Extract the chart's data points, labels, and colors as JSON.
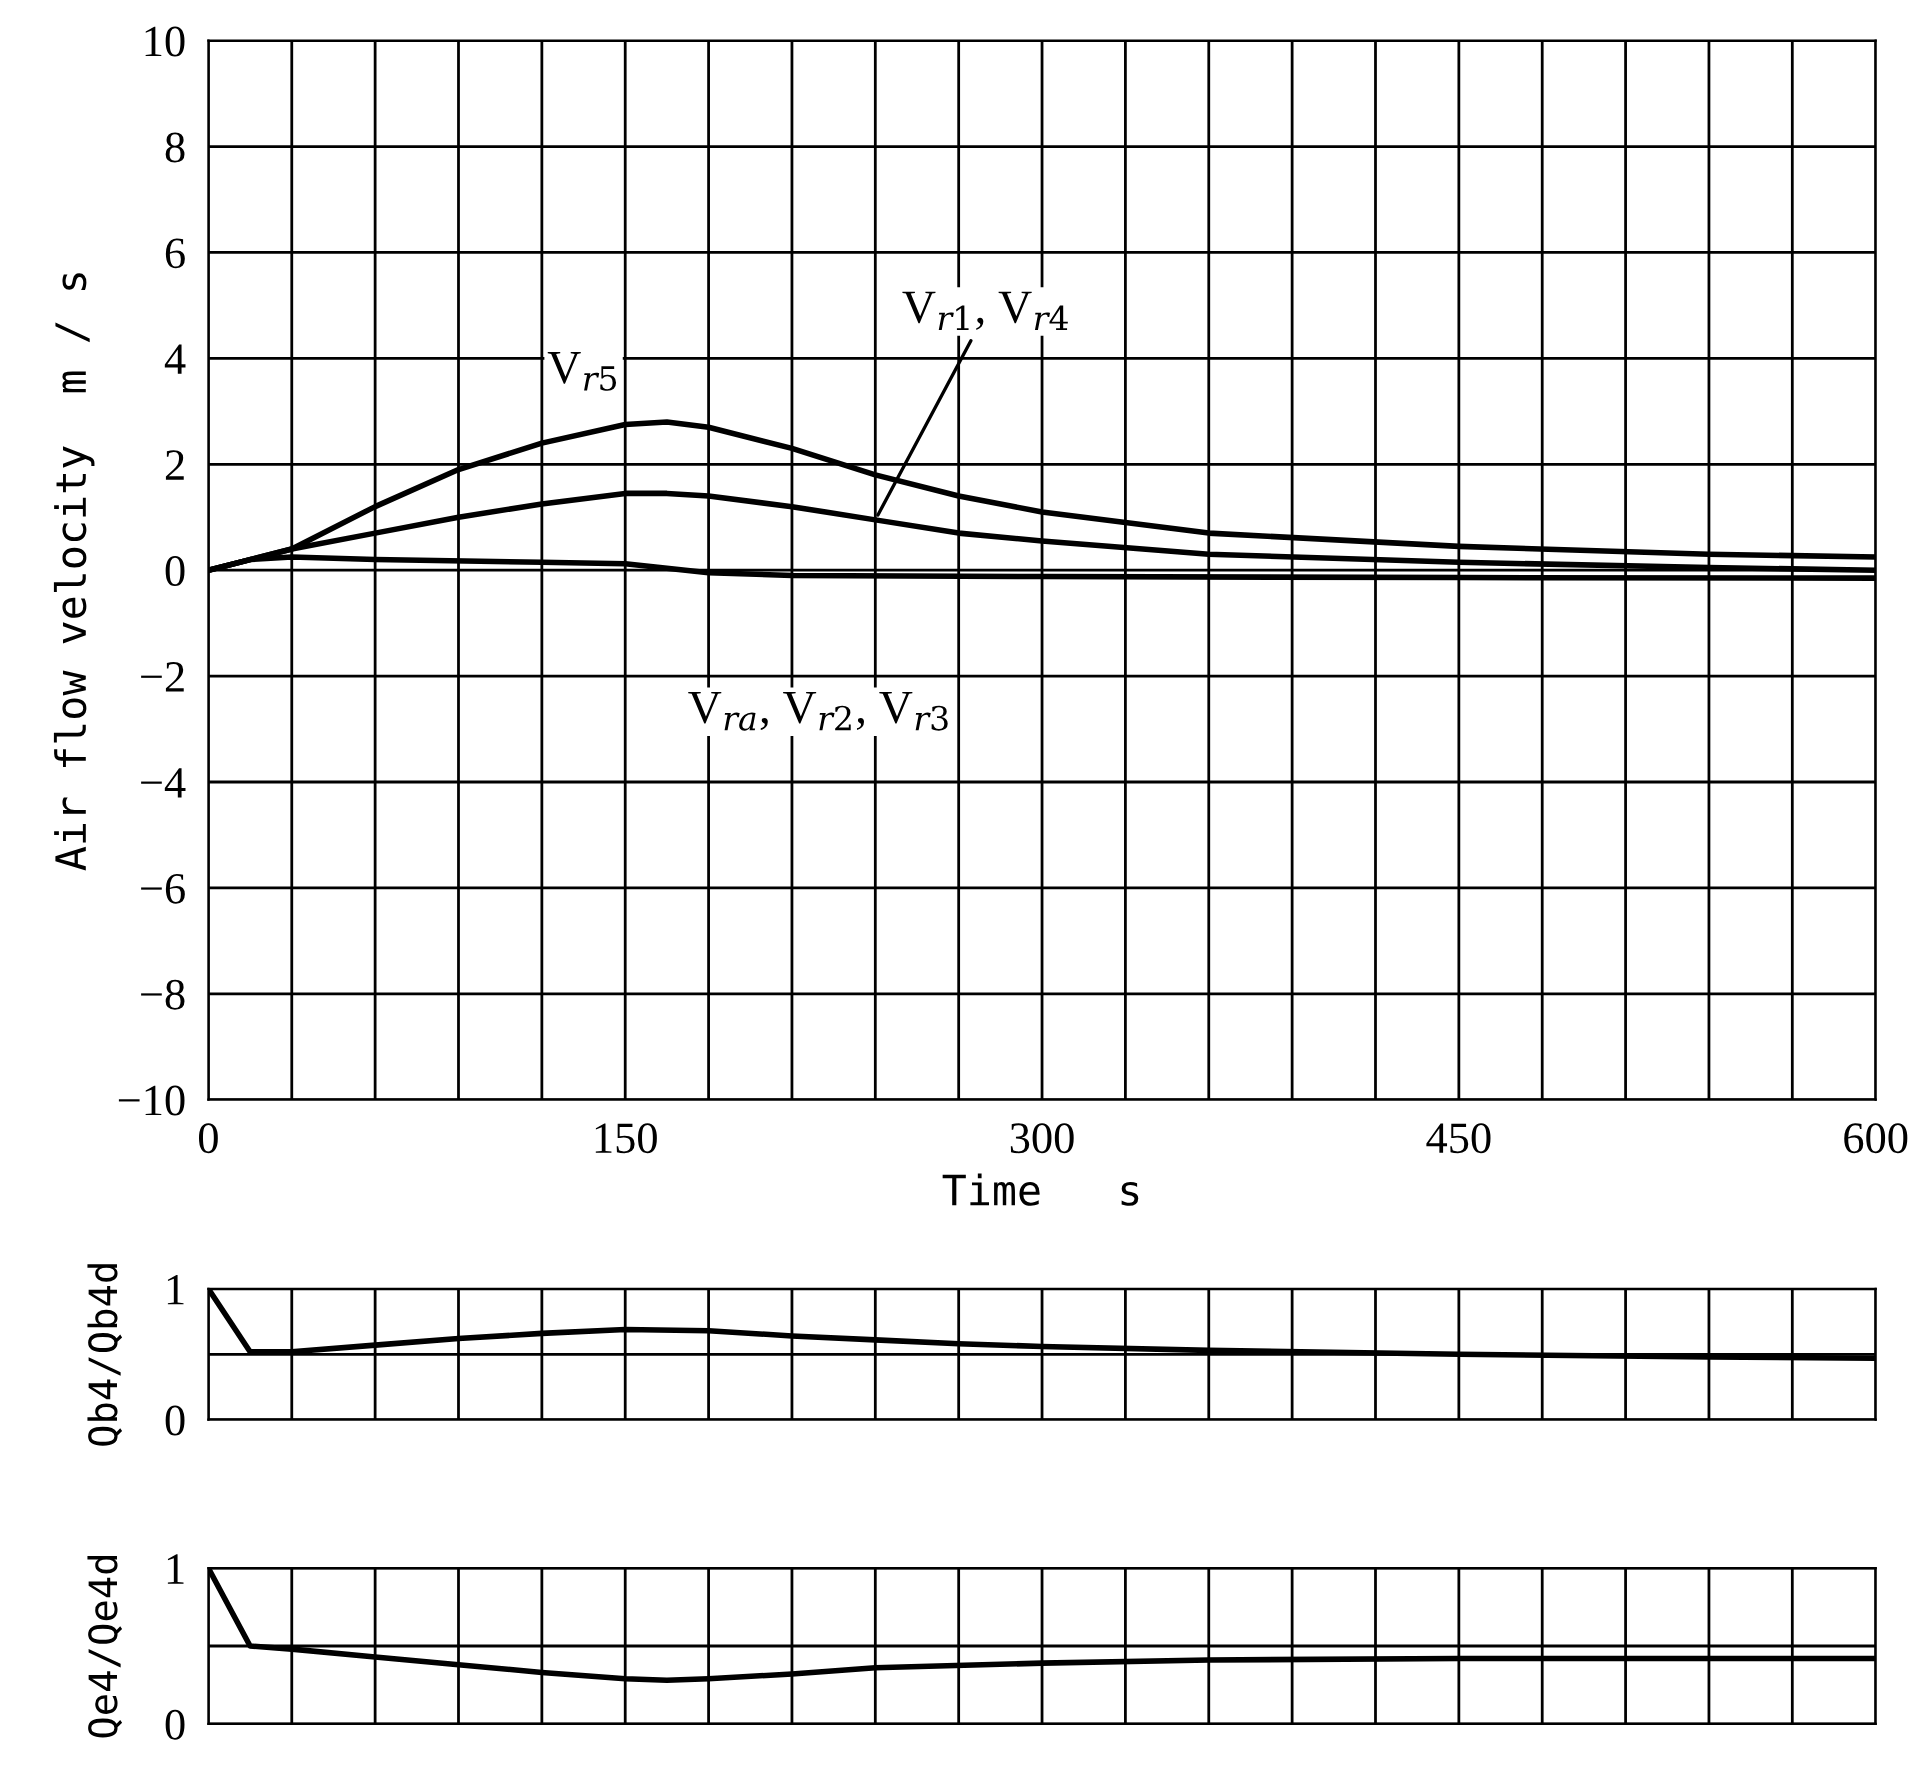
{
  "chart_data": [
    {
      "type": "line",
      "xlabel": "Time   s",
      "ylabel": "Air flow velocity  m / s",
      "xlim": [
        0,
        600
      ],
      "ylim": [
        -10,
        10
      ],
      "xticks": [
        0,
        {
          "value": 30,
          "label": null
        },
        {
          "value": 60,
          "label": null
        },
        {
          "value": 90,
          "label": null
        },
        {
          "value": 120,
          "label": null
        },
        150,
        {
          "value": 180,
          "label": null
        },
        {
          "value": 210,
          "label": null
        },
        {
          "value": 240,
          "label": null
        },
        {
          "value": 270,
          "label": null
        },
        300,
        {
          "value": 330,
          "label": null
        },
        {
          "value": 360,
          "label": null
        },
        {
          "value": 390,
          "label": null
        },
        {
          "value": 420,
          "label": null
        },
        450,
        {
          "value": 480,
          "label": null
        },
        {
          "value": 510,
          "label": null
        },
        {
          "value": 540,
          "label": null
        },
        {
          "value": 570,
          "label": null
        },
        600
      ],
      "yticks": [
        -10,
        -8,
        -6,
        -4,
        -2,
        0,
        2,
        4,
        6,
        8,
        10
      ],
      "grid": true,
      "line_style": "solid",
      "series": [
        {
          "name": "V$_{r5}$",
          "color": "#000000",
          "x": [
            0,
            15,
            30,
            60,
            90,
            120,
            150,
            165,
            180,
            210,
            240,
            270,
            300,
            360,
            450,
            540,
            600
          ],
          "values": [
            0,
            0.2,
            0.4,
            1.2,
            1.9,
            2.4,
            2.75,
            2.8,
            2.7,
            2.3,
            1.8,
            1.4,
            1.1,
            0.7,
            0.45,
            0.3,
            0.25
          ]
        },
        {
          "name": "V$_{r1}$, V$_{r4}$",
          "color": "#000000",
          "x": [
            0,
            15,
            30,
            60,
            90,
            120,
            150,
            165,
            180,
            210,
            240,
            270,
            300,
            360,
            450,
            540,
            600
          ],
          "values": [
            0,
            0.2,
            0.4,
            0.7,
            1.0,
            1.25,
            1.45,
            1.45,
            1.4,
            1.2,
            0.95,
            0.7,
            0.55,
            0.3,
            0.15,
            0.05,
            0.0
          ]
        },
        {
          "name": "V$_{ra}$, V$_{r2}$, V$_{r3}$",
          "color": "#000000",
          "x": [
            0,
            15,
            30,
            60,
            120,
            150,
            180,
            210,
            300,
            450,
            600
          ],
          "values": [
            0,
            0.2,
            0.25,
            0.2,
            0.15,
            0.12,
            -0.05,
            -0.1,
            -0.12,
            -0.14,
            -0.15
          ]
        }
      ]
    },
    {
      "type": "line",
      "ylabel": "Qb4/Qb4d",
      "xlim": [
        0,
        600
      ],
      "ylim": [
        0,
        1
      ],
      "tick_labels": "y",
      "xticks": [
        {
          "value": 0,
          "label": null
        },
        {
          "value": 30,
          "label": null
        },
        {
          "value": 60,
          "label": null
        },
        {
          "value": 90,
          "label": null
        },
        {
          "value": 120,
          "label": null
        },
        {
          "value": 150,
          "label": null
        },
        {
          "value": 180,
          "label": null
        },
        {
          "value": 210,
          "label": null
        },
        {
          "value": 240,
          "label": null
        },
        {
          "value": 270,
          "label": null
        },
        {
          "value": 300,
          "label": null
        },
        {
          "value": 330,
          "label": null
        },
        {
          "value": 360,
          "label": null
        },
        {
          "value": 390,
          "label": null
        },
        {
          "value": 420,
          "label": null
        },
        {
          "value": 450,
          "label": null
        },
        {
          "value": 480,
          "label": null
        },
        {
          "value": 510,
          "label": null
        },
        {
          "value": 540,
          "label": null
        },
        {
          "value": 570,
          "label": null
        },
        {
          "value": 600,
          "label": null
        }
      ],
      "yticks": [
        0,
        {
          "value": 0.5,
          "label": null
        },
        1
      ],
      "grid": true,
      "line_style": "solid",
      "series": [
        {
          "color": "#000000",
          "x": [
            0,
            15,
            30,
            60,
            90,
            120,
            150,
            180,
            210,
            240,
            270,
            300,
            360,
            450,
            540,
            600
          ],
          "values": [
            1.0,
            0.52,
            0.52,
            0.57,
            0.62,
            0.66,
            0.69,
            0.68,
            0.64,
            0.61,
            0.58,
            0.56,
            0.53,
            0.5,
            0.48,
            0.47
          ]
        }
      ]
    },
    {
      "type": "line",
      "ylabel": "Qe4/Qe4d",
      "xlim": [
        0,
        600
      ],
      "ylim": [
        0,
        1
      ],
      "tick_labels": "y",
      "xticks": [
        {
          "value": 0,
          "label": null
        },
        {
          "value": 30,
          "label": null
        },
        {
          "value": 60,
          "label": null
        },
        {
          "value": 90,
          "label": null
        },
        {
          "value": 120,
          "label": null
        },
        {
          "value": 150,
          "label": null
        },
        {
          "value": 180,
          "label": null
        },
        {
          "value": 210,
          "label": null
        },
        {
          "value": 240,
          "label": null
        },
        {
          "value": 270,
          "label": null
        },
        {
          "value": 300,
          "label": null
        },
        {
          "value": 330,
          "label": null
        },
        {
          "value": 360,
          "label": null
        },
        {
          "value": 390,
          "label": null
        },
        {
          "value": 420,
          "label": null
        },
        {
          "value": 450,
          "label": null
        },
        {
          "value": 480,
          "label": null
        },
        {
          "value": 510,
          "label": null
        },
        {
          "value": 540,
          "label": null
        },
        {
          "value": 570,
          "label": null
        },
        {
          "value": 600,
          "label": null
        }
      ],
      "yticks": [
        0,
        {
          "value": 0.5,
          "label": null
        },
        1
      ],
      "grid": true,
      "line_style": "solid",
      "series": [
        {
          "color": "#000000",
          "x": [
            0,
            15,
            30,
            60,
            90,
            120,
            150,
            165,
            180,
            210,
            240,
            300,
            360,
            450,
            600
          ],
          "values": [
            1.0,
            0.5,
            0.48,
            0.43,
            0.38,
            0.33,
            0.29,
            0.28,
            0.29,
            0.32,
            0.36,
            0.39,
            0.41,
            0.42,
            0.42
          ]
        }
      ]
    }
  ]
}
